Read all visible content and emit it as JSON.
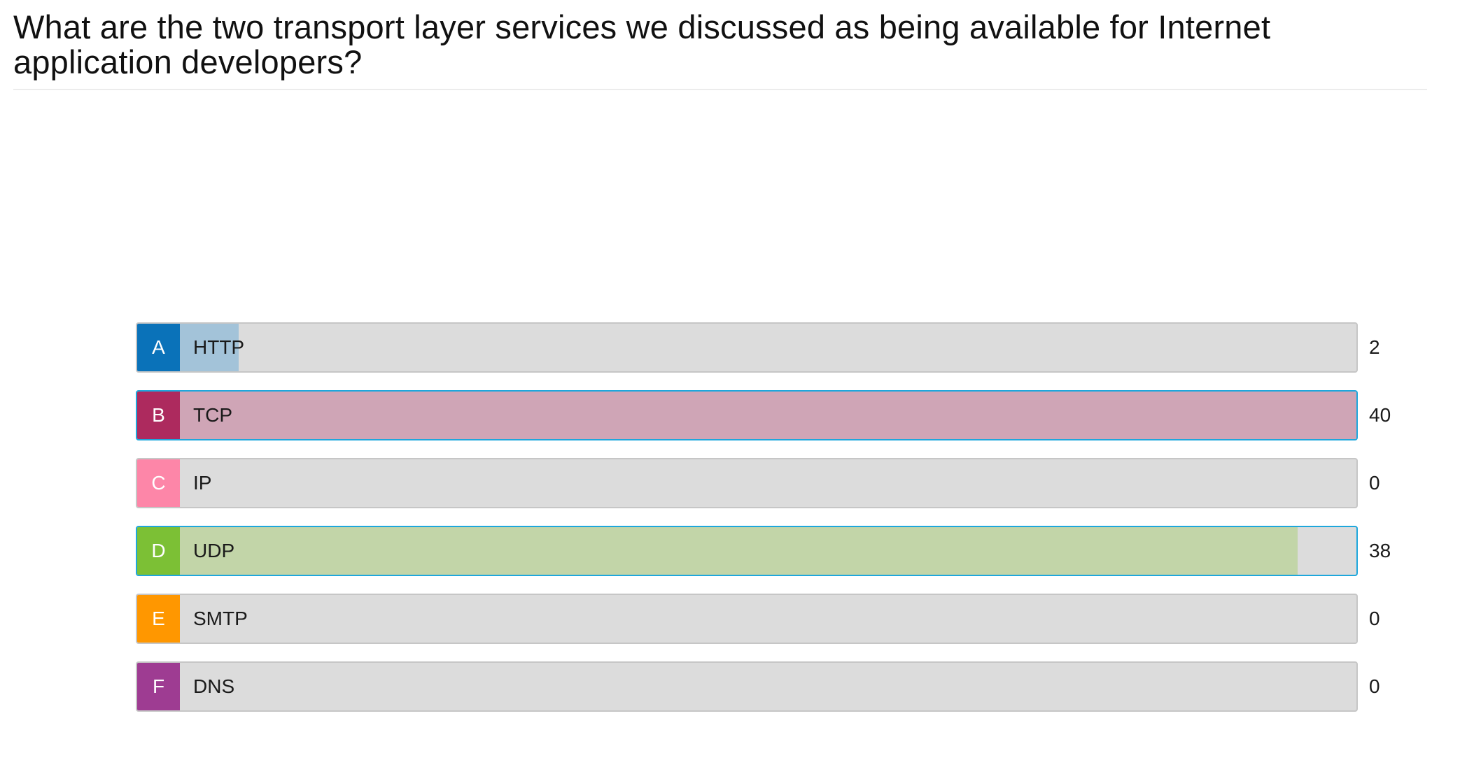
{
  "question": "What are the two transport layer services we discussed as being available for Internet application developers?",
  "max_count": 40,
  "options": [
    {
      "letter": "A",
      "label": "HTTP",
      "count": 2,
      "correct": false,
      "accent": "#0a72b9",
      "fill": "#a3c3d9"
    },
    {
      "letter": "B",
      "label": "TCP",
      "count": 40,
      "correct": true,
      "accent": "#ad2a5e",
      "fill": "#cfa5b6"
    },
    {
      "letter": "C",
      "label": "IP",
      "count": 0,
      "correct": false,
      "accent": "#fd86a8",
      "fill": "#f3c3d1"
    },
    {
      "letter": "D",
      "label": "UDP",
      "count": 38,
      "correct": true,
      "accent": "#7cc035",
      "fill": "#c2d5a8"
    },
    {
      "letter": "E",
      "label": "SMTP",
      "count": 0,
      "correct": false,
      "accent": "#ff9700",
      "fill": "#f2cfa0"
    },
    {
      "letter": "F",
      "label": "DNS",
      "count": 0,
      "correct": false,
      "accent": "#9e3c92",
      "fill": "#d2b0cd"
    }
  ]
}
